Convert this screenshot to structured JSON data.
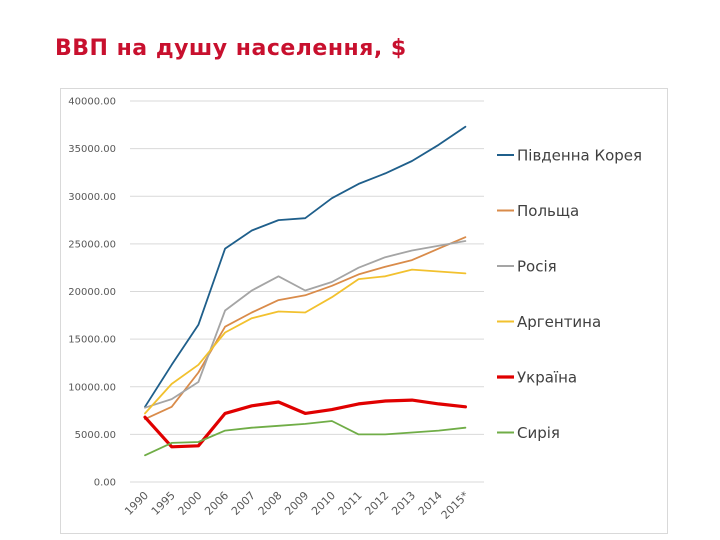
{
  "slide": {
    "title": "ВВП на душу населення, $"
  },
  "chart_data": {
    "type": "line",
    "title": "",
    "xlabel": "",
    "ylabel": "",
    "categories": [
      "1990",
      "1995",
      "2000",
      "2006",
      "2007",
      "2008",
      "2009",
      "2010",
      "2011",
      "2012",
      "2013",
      "2014",
      "2015*"
    ],
    "y_tick_labels": [
      "0.00",
      "5000.00",
      "10000.00",
      "15000.00",
      "20000.00",
      "25000.00",
      "30000.00",
      "35000.00",
      "40000.00"
    ],
    "ylim": [
      0,
      40000
    ],
    "grid": true,
    "legend_position": "right",
    "series": [
      {
        "name": "Південна Корея",
        "color": "#1f5f8b",
        "values": [
          7900,
          12300,
          16500,
          24500,
          26400,
          27500,
          27700,
          29800,
          31300,
          32400,
          33700,
          35400,
          37300
        ]
      },
      {
        "name": "Польща",
        "color": "#d98b4a",
        "values": [
          6600,
          7900,
          11500,
          16300,
          17800,
          19100,
          19600,
          20600,
          21800,
          22600,
          23300,
          24500,
          25700
        ]
      },
      {
        "name": "Росія",
        "color": "#a5a5a5",
        "values": [
          7800,
          8700,
          10500,
          18000,
          20100,
          21600,
          20100,
          21000,
          22500,
          23600,
          24300,
          24800,
          25300
        ]
      },
      {
        "name": "Аргентина",
        "color": "#f2c12e",
        "values": [
          7200,
          10300,
          12300,
          15700,
          17200,
          17900,
          17800,
          19400,
          21300,
          21600,
          22300,
          22100,
          21900
        ]
      },
      {
        "name": "Україна",
        "color": "#e00000",
        "values": [
          6800,
          3700,
          3800,
          7200,
          8000,
          8400,
          7200,
          7600,
          8200,
          8500,
          8600,
          8200,
          7900
        ]
      },
      {
        "name": "Сирія",
        "color": "#70ad47",
        "values": [
          2800,
          4100,
          4200,
          5400,
          5700,
          5900,
          6100,
          6400,
          5000,
          5000,
          5200,
          5400,
          5700
        ]
      }
    ]
  }
}
